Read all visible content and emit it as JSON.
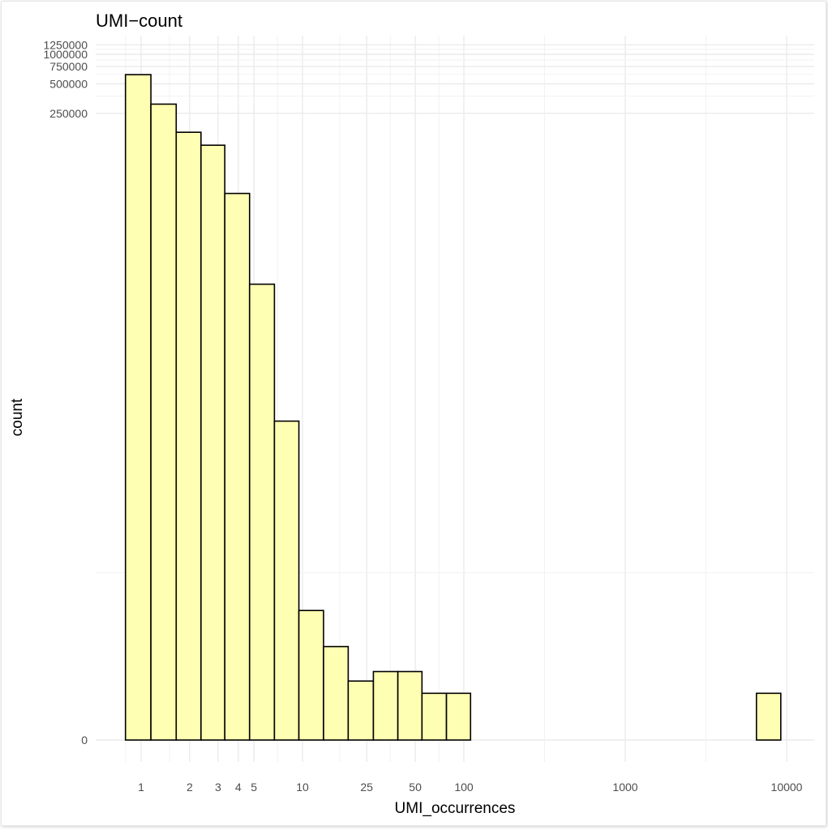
{
  "chart_data": {
    "type": "bar",
    "title": "UMI−count",
    "xlabel": "UMI_occurrences",
    "ylabel": "count",
    "x_scale": "log10",
    "y_scale": "pseudo-log (sqrt-like)",
    "grid": true,
    "x_ticks": [
      {
        "value": 1,
        "label": "1"
      },
      {
        "value": 2,
        "label": "2"
      },
      {
        "value": 3,
        "label": "3"
      },
      {
        "value": 4,
        "label": "4"
      },
      {
        "value": 5,
        "label": "5"
      },
      {
        "value": 10,
        "label": "10"
      },
      {
        "value": 25,
        "label": "25"
      },
      {
        "value": 50,
        "label": "50"
      },
      {
        "value": 100,
        "label": "100"
      },
      {
        "value": 1000,
        "label": "1000"
      },
      {
        "value": 10000,
        "label": "10000"
      }
    ],
    "y_ticks": [
      {
        "value": 0,
        "label": "0"
      },
      {
        "value": 250000,
        "label": "250000"
      },
      {
        "value": 500000,
        "label": "500000"
      },
      {
        "value": 750000,
        "label": "750000"
      },
      {
        "value": 1000000,
        "label": "1000000"
      },
      {
        "value": 1250000,
        "label": "1250000"
      }
    ],
    "bars": [
      {
        "x_from": 0.8,
        "x_to": 1.15,
        "value": 620000
      },
      {
        "x_from": 1.15,
        "x_to": 1.65,
        "value": 310000
      },
      {
        "x_from": 1.65,
        "x_to": 2.35,
        "value": 160000
      },
      {
        "x_from": 2.35,
        "x_to": 3.3,
        "value": 118000
      },
      {
        "x_from": 3.3,
        "x_to": 4.7,
        "value": 38000
      },
      {
        "x_from": 4.7,
        "x_to": 6.7,
        "value": 4500
      },
      {
        "x_from": 6.7,
        "x_to": 9.5,
        "value": 180
      },
      {
        "x_from": 9.5,
        "x_to": 13.5,
        "value": 2
      },
      {
        "x_from": 13.5,
        "x_to": 19.2,
        "value": 0.8
      },
      {
        "x_from": 19.2,
        "x_to": 27.5,
        "value": 0.3
      },
      {
        "x_from": 27.5,
        "x_to": 39,
        "value": 0.4
      },
      {
        "x_from": 39,
        "x_to": 55,
        "value": 0.4
      },
      {
        "x_from": 55,
        "x_to": 78,
        "value": 0.2
      },
      {
        "x_from": 78,
        "x_to": 110,
        "value": 0.2
      },
      {
        "x_from": 110,
        "x_to": 6500,
        "value": 0
      },
      {
        "x_from": 6500,
        "x_to": 9200,
        "value": 0.2
      }
    ],
    "colors": {
      "bar_fill": "#ffffb3",
      "bar_stroke": "#000000",
      "grid_major": "#ebebeb",
      "grid_minor": "#f2f2f2"
    }
  }
}
